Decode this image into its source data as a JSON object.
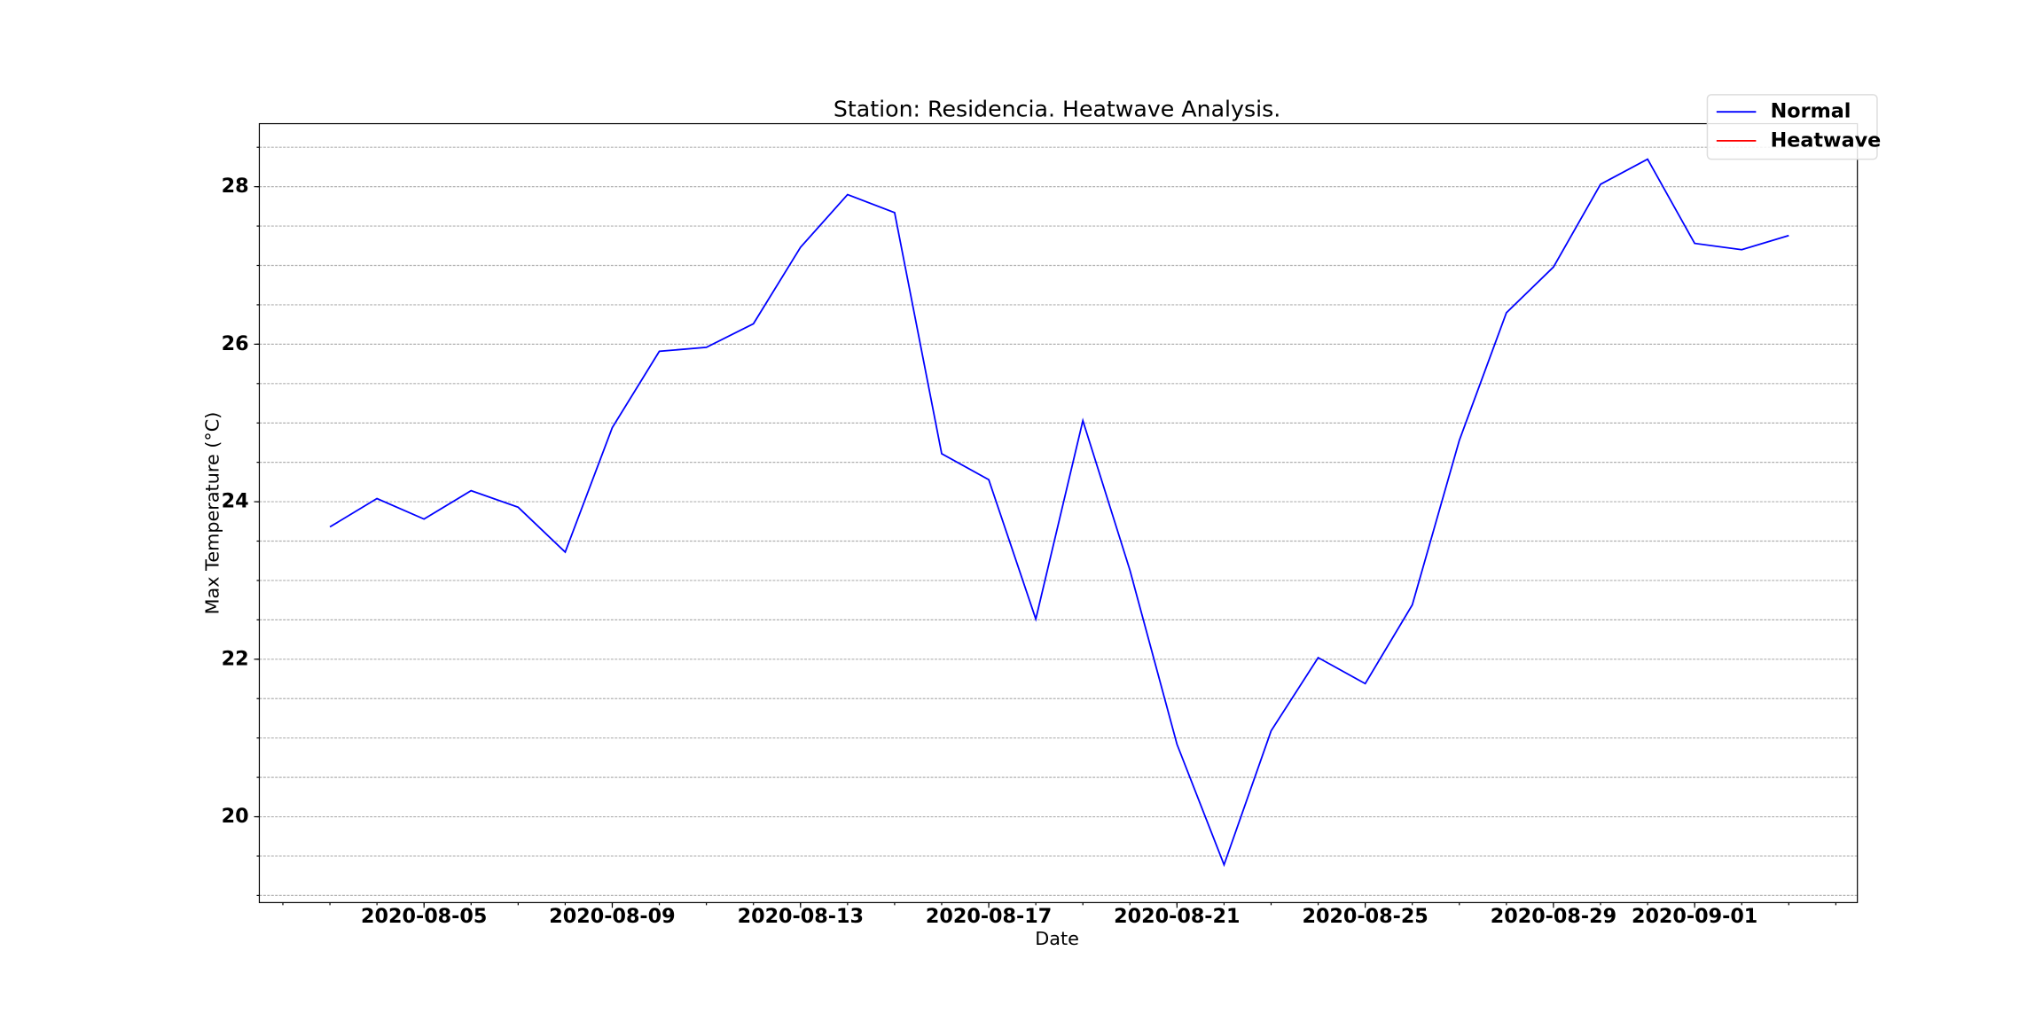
{
  "chart_data": {
    "type": "line",
    "title": "Station: Residencia. Heatwave Analysis.",
    "xlabel": "Date",
    "ylabel": "Max Temperature (°C)",
    "x": [
      "2020-08-03",
      "2020-08-04",
      "2020-08-05",
      "2020-08-06",
      "2020-08-07",
      "2020-08-08",
      "2020-08-09",
      "2020-08-10",
      "2020-08-11",
      "2020-08-12",
      "2020-08-13",
      "2020-08-14",
      "2020-08-15",
      "2020-08-16",
      "2020-08-17",
      "2020-08-18",
      "2020-08-19",
      "2020-08-20",
      "2020-08-21",
      "2020-08-22",
      "2020-08-23",
      "2020-08-24",
      "2020-08-25",
      "2020-08-26",
      "2020-08-27",
      "2020-08-28",
      "2020-08-29",
      "2020-08-30",
      "2020-08-31",
      "2020-09-01",
      "2020-09-02",
      "2020-09-03"
    ],
    "series": [
      {
        "name": "Normal",
        "color": "#0000ff",
        "values": [
          23.68,
          24.04,
          23.78,
          24.14,
          23.93,
          23.36,
          24.94,
          25.91,
          25.96,
          26.26,
          27.23,
          27.9,
          27.67,
          24.61,
          24.28,
          22.51,
          25.03,
          23.13,
          20.92,
          19.39,
          21.09,
          22.02,
          21.69,
          22.69,
          24.78,
          26.4,
          26.98,
          28.03,
          28.35,
          27.28,
          27.2,
          27.38
        ]
      },
      {
        "name": "Heatwave",
        "color": "#ff0000",
        "values": [
          null,
          null,
          null,
          null,
          null,
          null,
          null,
          null,
          null,
          null,
          null,
          null,
          null,
          null,
          null,
          null,
          null,
          null,
          null,
          null,
          null,
          null,
          null,
          null,
          null,
          null,
          null,
          null,
          null,
          null,
          null,
          null
        ]
      }
    ],
    "xlim": [
      "2020-08-01T12:00:00Z",
      "2020-09-04T11:00:00Z"
    ],
    "xticks": [
      "2020-08-05",
      "2020-08-09",
      "2020-08-13",
      "2020-08-17",
      "2020-08-21",
      "2020-08-25",
      "2020-08-29",
      "2020-09-01"
    ],
    "xminor_ticks": [
      "2020-08-02",
      "2020-08-03",
      "2020-08-04",
      "2020-08-05",
      "2020-08-06",
      "2020-08-07",
      "2020-08-08",
      "2020-08-09",
      "2020-08-10",
      "2020-08-11",
      "2020-08-12",
      "2020-08-13",
      "2020-08-14",
      "2020-08-15",
      "2020-08-16",
      "2020-08-17",
      "2020-08-18",
      "2020-08-19",
      "2020-08-20",
      "2020-08-21",
      "2020-08-22",
      "2020-08-23",
      "2020-08-24",
      "2020-08-25",
      "2020-08-26",
      "2020-08-27",
      "2020-08-28",
      "2020-08-29",
      "2020-08-30",
      "2020-08-31",
      "2020-09-01",
      "2020-09-02",
      "2020-09-03",
      "2020-09-04"
    ],
    "ylim": [
      18.91,
      28.8
    ],
    "yticks": [
      20,
      22,
      24,
      26,
      28
    ],
    "yminor_ticks": [
      19,
      19.5,
      20,
      20.5,
      21,
      21.5,
      22,
      22.5,
      23,
      23.5,
      24,
      24.5,
      25,
      25.5,
      26,
      26.5,
      27,
      27.5,
      28,
      28.5
    ],
    "grid": true,
    "legend": "upper right"
  }
}
